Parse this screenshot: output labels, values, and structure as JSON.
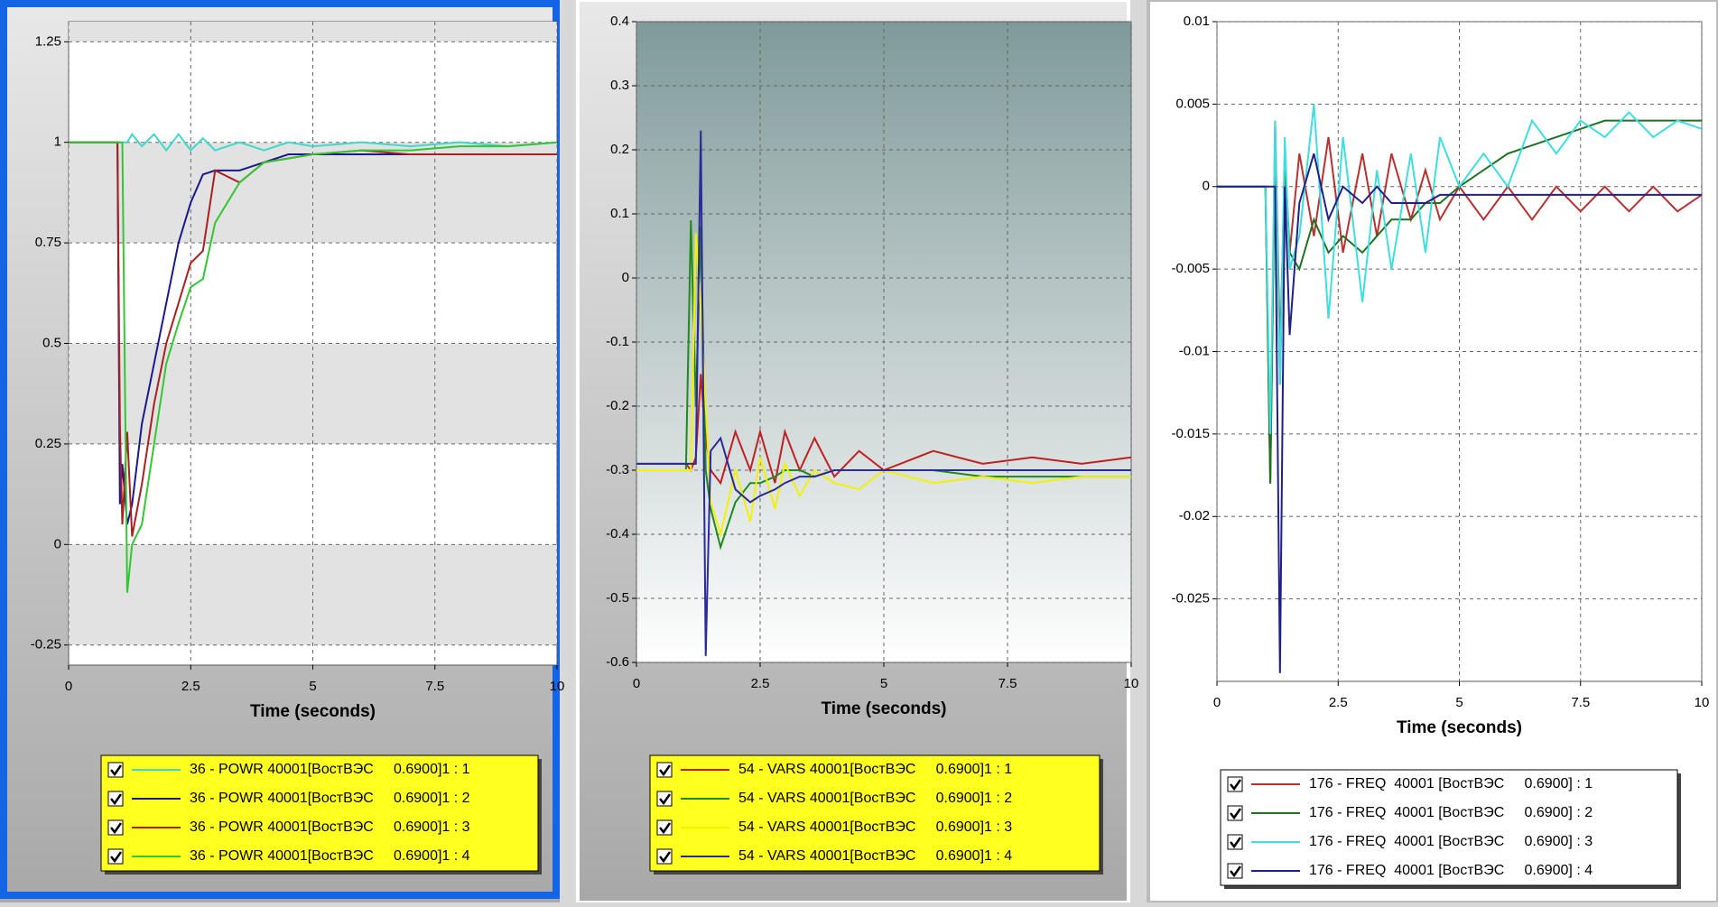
{
  "chart_data": [
    {
      "type": "line",
      "x_label": "Time (seconds)",
      "xlim": [
        0,
        10
      ],
      "xticks": [
        0,
        2.5,
        5,
        7.5,
        10
      ],
      "ylim": [
        -0.3,
        1.3
      ],
      "yticks": [
        -0.25,
        0,
        0.25,
        0.5,
        0.75,
        1,
        1.25
      ],
      "grid": true,
      "x": [
        0,
        1,
        1.05,
        1.1,
        1.2,
        1.3,
        1.5,
        1.75,
        2,
        2.25,
        2.5,
        2.75,
        3,
        3.5,
        4,
        4.5,
        5,
        6,
        7,
        8,
        9,
        10
      ],
      "series": [
        {
          "name": "36 - POWR 40001[ВостВЭС     0.6900]1 : 1",
          "color": "#3fd8cc",
          "values": [
            1,
            1,
            1,
            1,
            1,
            1.02,
            0.99,
            1.02,
            0.98,
            1.02,
            0.98,
            1.01,
            0.98,
            1.0,
            0.98,
            1.0,
            0.99,
            1.0,
            0.99,
            1.0,
            0.99,
            1.0
          ]
        },
        {
          "name": "36 - POWR 40001[ВостВЭС     0.6900]1 : 2",
          "color": "#1a1a8a",
          "values": [
            1,
            1,
            0.1,
            0.2,
            0.05,
            0.1,
            0.3,
            0.45,
            0.6,
            0.75,
            0.85,
            0.92,
            0.93,
            0.93,
            0.95,
            0.97,
            0.97,
            0.97,
            0.97,
            0.97,
            0.97,
            0.97
          ]
        },
        {
          "name": "36 - POWR 40001[ВостВЭС     0.6900]1 : 3",
          "color": "#a82020",
          "values": [
            1,
            1,
            0.3,
            0.05,
            0.28,
            0.02,
            0.15,
            0.35,
            0.5,
            0.6,
            0.7,
            0.73,
            0.93,
            0.9,
            0.95,
            0.96,
            0.97,
            0.98,
            0.97,
            0.97,
            0.97,
            0.97
          ]
        },
        {
          "name": "36 - POWR 40001[ВостВЭС     0.6900]1 : 4",
          "color": "#33c633",
          "values": [
            1,
            1,
            1,
            1,
            -0.12,
            0.0,
            0.05,
            0.25,
            0.45,
            0.55,
            0.64,
            0.66,
            0.8,
            0.9,
            0.95,
            0.96,
            0.97,
            0.98,
            0.98,
            0.99,
            0.99,
            1.0
          ]
        }
      ]
    },
    {
      "type": "line",
      "x_label": "Time (seconds)",
      "xlim": [
        0,
        10
      ],
      "xticks": [
        0,
        2.5,
        5,
        7.5,
        10
      ],
      "ylim": [
        -0.6,
        0.4
      ],
      "yticks": [
        -0.6,
        -0.5,
        -0.4,
        -0.3,
        -0.2,
        -0.1,
        0,
        0.1,
        0.2,
        0.3,
        0.4
      ],
      "grid": true,
      "x": [
        0,
        1,
        1.1,
        1.2,
        1.3,
        1.4,
        1.5,
        1.7,
        2,
        2.3,
        2.5,
        2.8,
        3,
        3.3,
        3.6,
        4,
        4.5,
        5,
        6,
        7,
        8,
        9,
        10
      ],
      "series": [
        {
          "name": "54 - VARS 40001[ВостВЭС     0.6900]1 : 1",
          "color": "#c02020",
          "values": [
            -0.29,
            -0.29,
            -0.3,
            -0.28,
            -0.15,
            -0.25,
            -0.3,
            -0.32,
            -0.24,
            -0.3,
            -0.24,
            -0.32,
            -0.24,
            -0.3,
            -0.25,
            -0.31,
            -0.27,
            -0.3,
            -0.27,
            -0.29,
            -0.28,
            -0.29,
            -0.28
          ]
        },
        {
          "name": "54 - VARS 40001[ВостВЭС     0.6900]1 : 2",
          "color": "#1f8a1f",
          "values": [
            -0.3,
            -0.3,
            0.09,
            -0.2,
            0.08,
            -0.3,
            -0.36,
            -0.42,
            -0.35,
            -0.32,
            -0.32,
            -0.31,
            -0.3,
            -0.3,
            -0.31,
            -0.3,
            -0.3,
            -0.3,
            -0.3,
            -0.31,
            -0.31,
            -0.31,
            -0.31
          ]
        },
        {
          "name": "54 - VARS 40001[ВостВЭС     0.6900]1 : 3",
          "color": "#f2f200",
          "values": [
            -0.3,
            -0.3,
            -0.3,
            0.07,
            -0.05,
            -0.2,
            -0.35,
            -0.4,
            -0.3,
            -0.38,
            -0.28,
            -0.36,
            -0.29,
            -0.34,
            -0.3,
            -0.32,
            -0.33,
            -0.3,
            -0.32,
            -0.31,
            -0.32,
            -0.31,
            -0.31
          ]
        },
        {
          "name": "54 - VARS 40001[ВостВЭС     0.6900]1 : 4",
          "color": "#2a2a9a",
          "values": [
            -0.29,
            -0.29,
            -0.29,
            -0.29,
            0.23,
            -0.59,
            -0.27,
            -0.25,
            -0.33,
            -0.35,
            -0.34,
            -0.33,
            -0.32,
            -0.31,
            -0.31,
            -0.3,
            -0.3,
            -0.3,
            -0.3,
            -0.3,
            -0.3,
            -0.3,
            -0.3
          ]
        }
      ]
    },
    {
      "type": "line",
      "x_label": "Time (seconds)",
      "xlim": [
        0,
        10
      ],
      "xticks": [
        0,
        2.5,
        5,
        7.5,
        10
      ],
      "ylim": [
        -0.03,
        0.01
      ],
      "yticks": [
        -0.025,
        -0.02,
        -0.015,
        -0.01,
        -0.005,
        0,
        0.005,
        0.01
      ],
      "grid": true,
      "x": [
        0,
        1,
        1.1,
        1.2,
        1.3,
        1.4,
        1.5,
        1.7,
        2,
        2.3,
        2.6,
        3,
        3.3,
        3.6,
        4,
        4.3,
        4.6,
        5,
        5.5,
        6,
        6.5,
        7,
        7.5,
        8,
        8.5,
        9,
        9.5,
        10
      ],
      "series": [
        {
          "name": "176 - FREQ  40001 [ВостВЭС     0.6900] : 1",
          "color": "#b83030",
          "values": [
            0,
            0,
            -0.018,
            0.004,
            -0.01,
            0.001,
            -0.004,
            0.002,
            -0.003,
            0.003,
            -0.004,
            0.002,
            -0.003,
            0.002,
            -0.002,
            0.001,
            -0.002,
            0.0,
            -0.002,
            0.0,
            -0.002,
            0.0,
            -0.0015,
            0.0,
            -0.0015,
            0.0,
            -0.0015,
            -0.0005
          ]
        },
        {
          "name": "176 - FREQ  40001 [ВостВЭС     0.6900] : 2",
          "color": "#1f721f",
          "values": [
            0,
            0,
            -0.018,
            0.003,
            -0.012,
            0.002,
            -0.004,
            -0.005,
            -0.002,
            -0.004,
            -0.003,
            -0.004,
            -0.003,
            -0.002,
            -0.002,
            -0.001,
            -0.001,
            0.0,
            0.001,
            0.002,
            0.0025,
            0.003,
            0.0035,
            0.004,
            0.004,
            0.004,
            0.004,
            0.004
          ]
        },
        {
          "name": "176 - FREQ  40001 [ВостВЭС     0.6900] : 3",
          "color": "#3fdede",
          "values": [
            0,
            0,
            -0.015,
            0.004,
            -0.012,
            0.003,
            -0.005,
            -0.003,
            0.005,
            -0.008,
            0.003,
            -0.007,
            0.001,
            -0.005,
            0.002,
            -0.004,
            0.003,
            0.0,
            0.002,
            0.0,
            0.004,
            0.002,
            0.004,
            0.003,
            0.0045,
            0.003,
            0.004,
            0.0035
          ]
        },
        {
          "name": "176 - FREQ  40001 [ВостВЭС     0.6900] : 4",
          "color": "#20208a",
          "values": [
            0,
            0,
            0,
            0,
            -0.0295,
            0.0,
            -0.009,
            -0.001,
            0.002,
            -0.002,
            0.0,
            -0.001,
            0.0,
            -0.001,
            -0.001,
            -0.001,
            -0.0005,
            -0.0005,
            -0.0005,
            -0.0005,
            -0.0005,
            -0.0005,
            -0.0005,
            -0.0005,
            -0.0005,
            -0.0005,
            -0.0005,
            -0.0005
          ]
        }
      ]
    }
  ]
}
